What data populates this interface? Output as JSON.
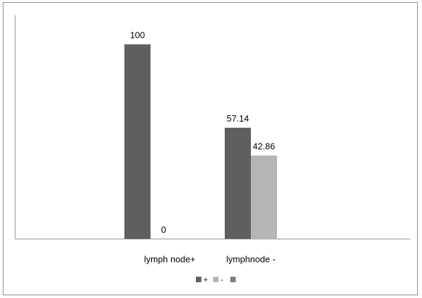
{
  "chart_data": {
    "type": "bar",
    "categories": [
      "lymph node+",
      "lymphnode -"
    ],
    "series": [
      {
        "name": "+",
        "values": [
          100,
          57.14
        ],
        "color": "#5f5f5f"
      },
      {
        "name": "-",
        "values": [
          0,
          42.86
        ],
        "color": "#b5b5b5"
      },
      {
        "name": "",
        "values": [
          null,
          null
        ],
        "color": "#808080"
      }
    ],
    "ylim": [
      0,
      115
    ],
    "title": "",
    "xlabel": "",
    "ylabel": "",
    "grid": false,
    "legend_position": "bottom"
  }
}
